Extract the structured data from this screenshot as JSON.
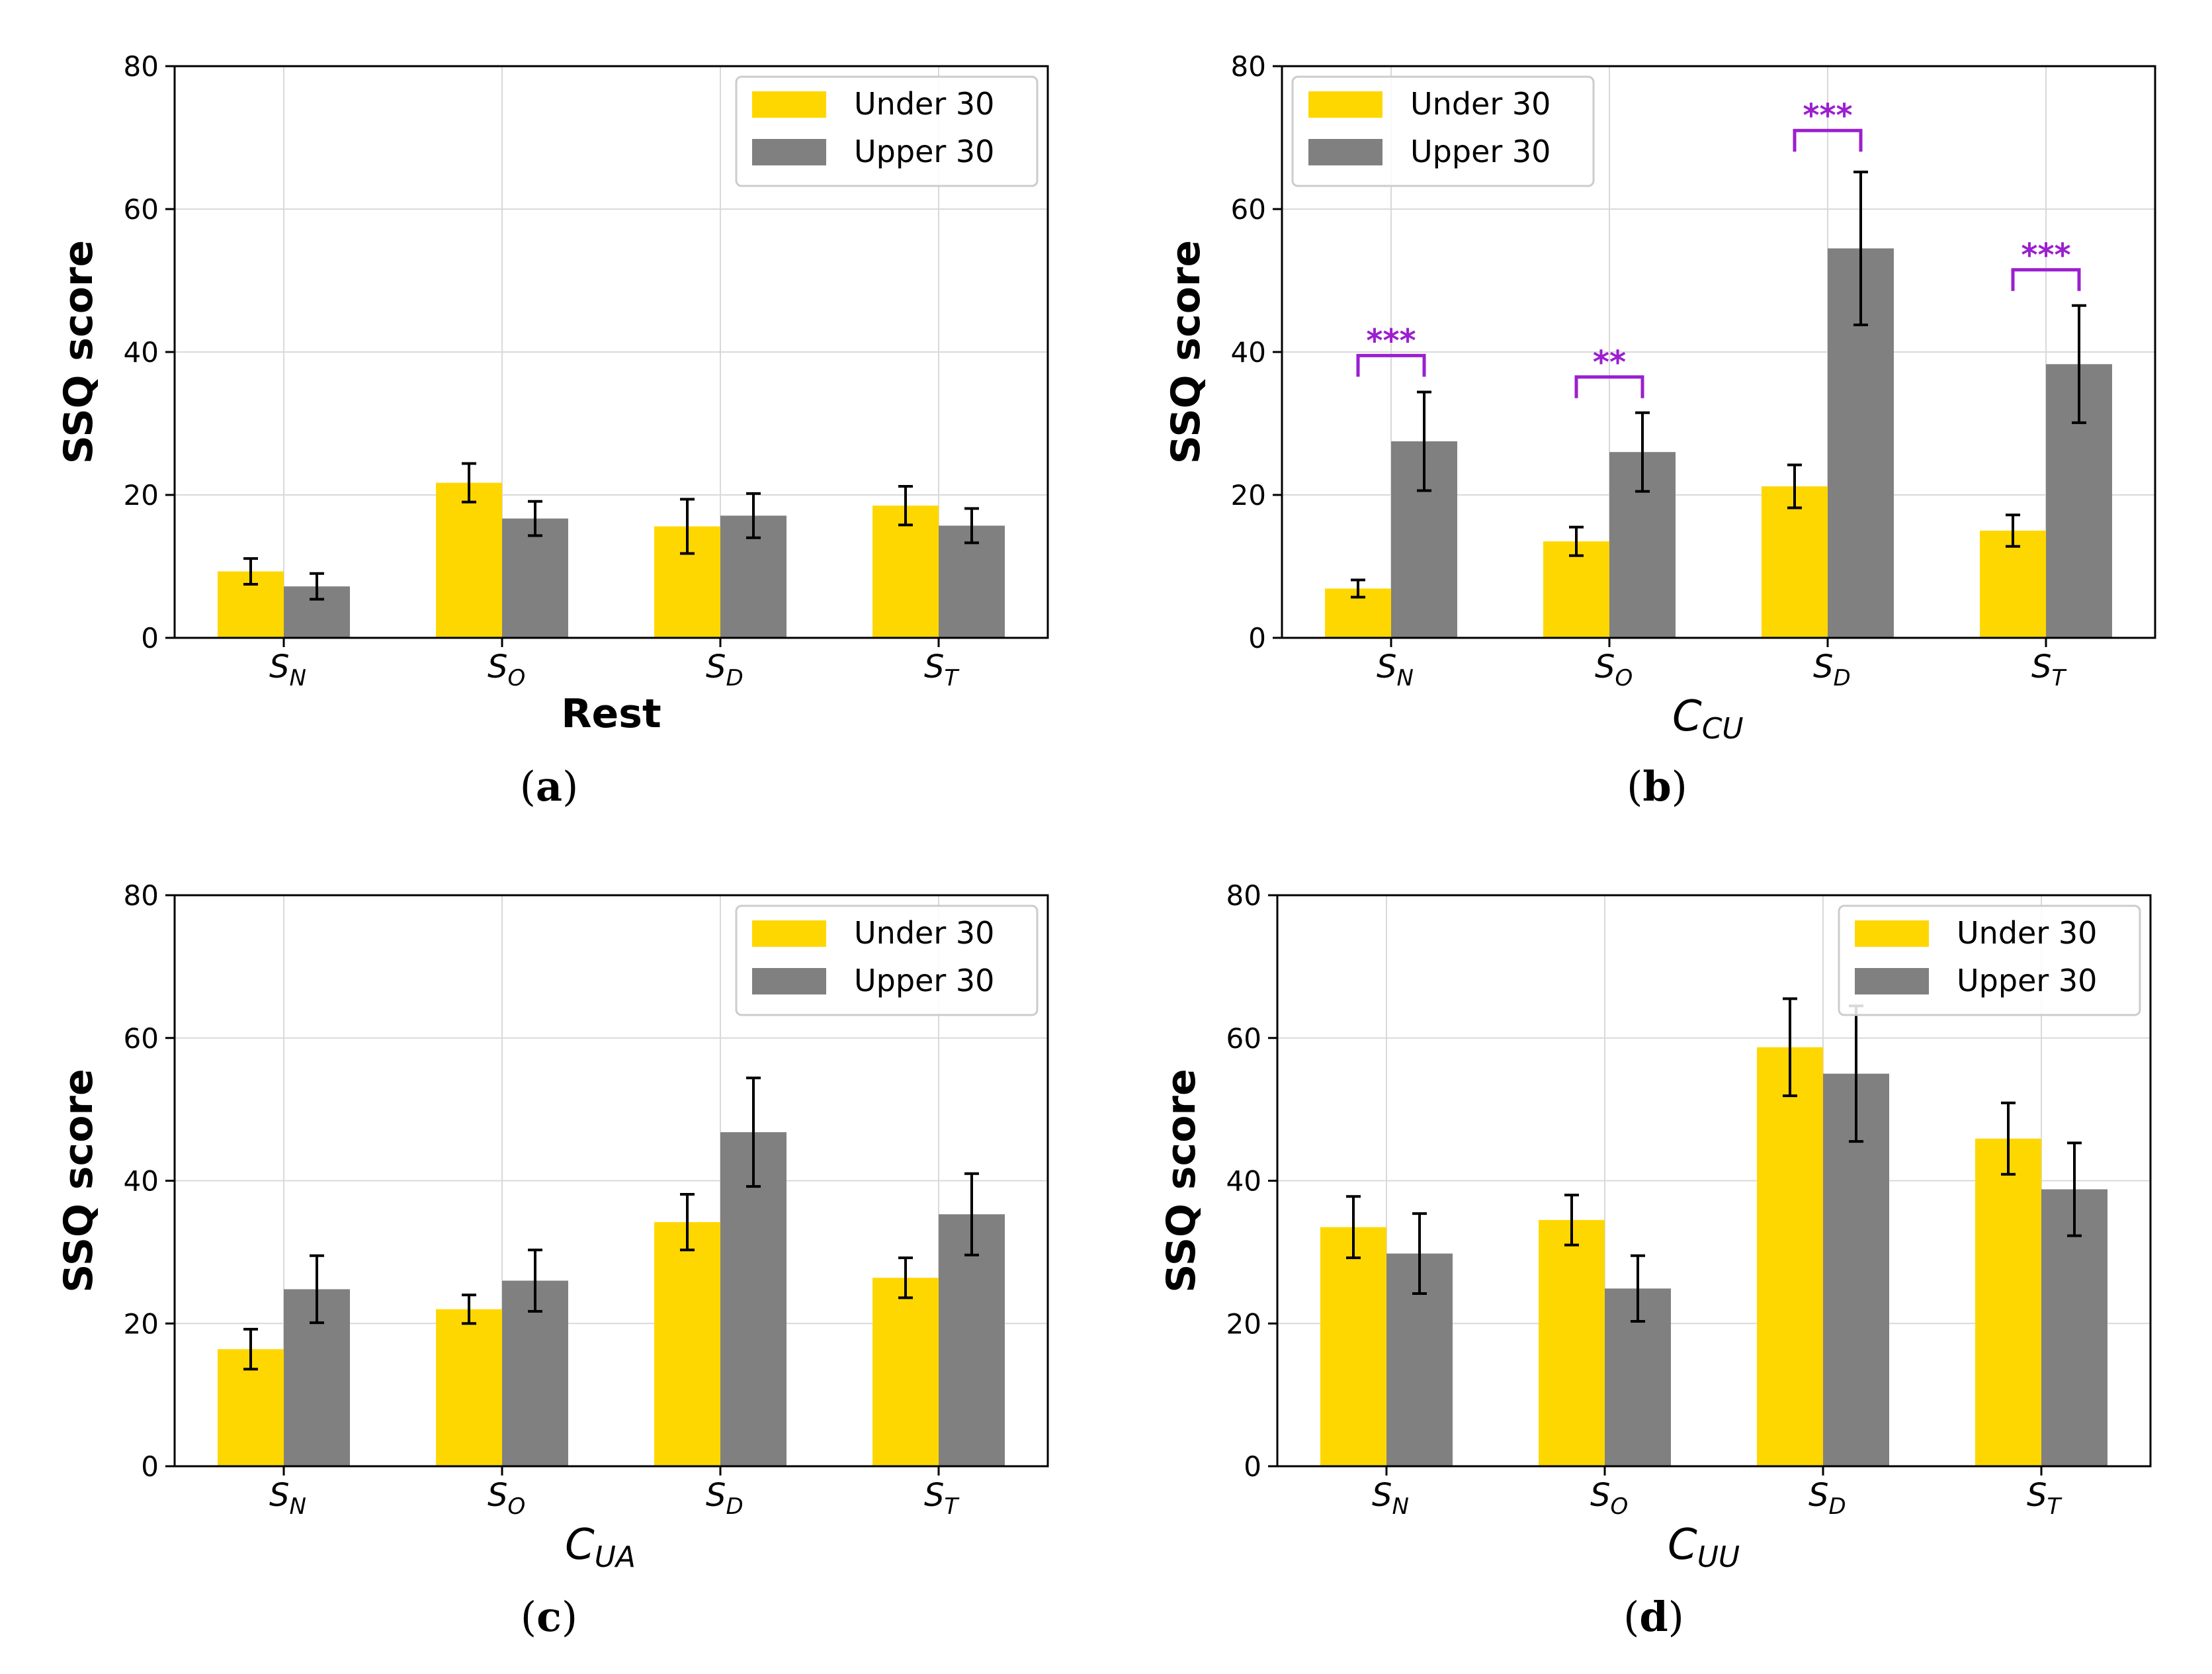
{
  "legend_colors": {
    "under": "#ffd700",
    "upper": "#808080",
    "significance": "#9b1fcf"
  },
  "chart_data": [
    {
      "type": "bar",
      "panel_label": "(a)",
      "panel_letter": "a",
      "title": "",
      "xlabel": "Rest",
      "xlabel_style": "bold",
      "ylabel": "SSQ score",
      "ylim": [
        0,
        80
      ],
      "yticks": [
        0,
        20,
        40,
        60,
        80
      ],
      "grid": true,
      "legend_position": "top-right",
      "categories": [
        {
          "base": "S",
          "sub": "N"
        },
        {
          "base": "S",
          "sub": "O"
        },
        {
          "base": "S",
          "sub": "D"
        },
        {
          "base": "S",
          "sub": "T"
        }
      ],
      "series": [
        {
          "name": "Under 30",
          "values": [
            9.3,
            21.7,
            15.6,
            18.5
          ],
          "err": [
            1.8,
            2.7,
            3.8,
            2.7
          ]
        },
        {
          "name": "Upper 30",
          "values": [
            7.2,
            16.7,
            17.1,
            15.7
          ],
          "err": [
            1.8,
            2.4,
            3.1,
            2.4
          ]
        }
      ],
      "significance": []
    },
    {
      "type": "bar",
      "panel_label": "(b)",
      "panel_letter": "b",
      "title": "",
      "xlabel": {
        "base": "C",
        "sub": "CU"
      },
      "xlabel_style": "italic",
      "ylabel": "SSQ score",
      "ylim": [
        0,
        80
      ],
      "yticks": [
        0,
        20,
        40,
        60,
        80
      ],
      "grid": true,
      "legend_position": "top-left",
      "categories": [
        {
          "base": "S",
          "sub": "N"
        },
        {
          "base": "S",
          "sub": "O"
        },
        {
          "base": "S",
          "sub": "D"
        },
        {
          "base": "S",
          "sub": "T"
        }
      ],
      "series": [
        {
          "name": "Under 30",
          "values": [
            6.9,
            13.5,
            21.2,
            15.0
          ],
          "err": [
            1.2,
            2.0,
            3.0,
            2.2
          ]
        },
        {
          "name": "Upper 30",
          "values": [
            27.5,
            26.0,
            54.5,
            38.3
          ],
          "err": [
            6.9,
            5.5,
            10.7,
            8.2
          ]
        }
      ],
      "significance": [
        {
          "category": 0,
          "label": "***",
          "level": 39.5
        },
        {
          "category": 1,
          "label": "**",
          "level": 36.5
        },
        {
          "category": 2,
          "label": "***",
          "level": 71.0
        },
        {
          "category": 3,
          "label": "***",
          "level": 51.5
        }
      ]
    },
    {
      "type": "bar",
      "panel_label": "(c)",
      "panel_letter": "c",
      "title": "",
      "xlabel": {
        "base": "C",
        "sub": "UA"
      },
      "xlabel_style": "italic",
      "ylabel": "SSQ score",
      "ylim": [
        0,
        80
      ],
      "yticks": [
        0,
        20,
        40,
        60,
        80
      ],
      "grid": true,
      "legend_position": "top-right",
      "categories": [
        {
          "base": "S",
          "sub": "N"
        },
        {
          "base": "S",
          "sub": "O"
        },
        {
          "base": "S",
          "sub": "D"
        },
        {
          "base": "S",
          "sub": "T"
        }
      ],
      "series": [
        {
          "name": "Under 30",
          "values": [
            16.4,
            22.0,
            34.2,
            26.4
          ],
          "err": [
            2.8,
            2.0,
            3.9,
            2.8
          ]
        },
        {
          "name": "Upper 30",
          "values": [
            24.8,
            26.0,
            46.8,
            35.3
          ],
          "err": [
            4.7,
            4.3,
            7.6,
            5.7
          ]
        }
      ],
      "significance": []
    },
    {
      "type": "bar",
      "panel_label": "(d)",
      "panel_letter": "d",
      "title": "",
      "xlabel": {
        "base": "C",
        "sub": "UU"
      },
      "xlabel_style": "italic",
      "ylabel": "SSQ score",
      "ylim": [
        0,
        80
      ],
      "yticks": [
        0,
        20,
        40,
        60,
        80
      ],
      "grid": true,
      "legend_position": "top-right",
      "categories": [
        {
          "base": "S",
          "sub": "N"
        },
        {
          "base": "S",
          "sub": "O"
        },
        {
          "base": "S",
          "sub": "D"
        },
        {
          "base": "S",
          "sub": "T"
        }
      ],
      "series": [
        {
          "name": "Under 30",
          "values": [
            33.5,
            34.5,
            58.7,
            45.9
          ],
          "err": [
            4.3,
            3.5,
            6.8,
            5.0
          ]
        },
        {
          "name": "Upper 30",
          "values": [
            29.8,
            24.9,
            55.0,
            38.8
          ],
          "err": [
            5.6,
            4.6,
            9.5,
            6.5
          ]
        }
      ],
      "significance": []
    }
  ]
}
